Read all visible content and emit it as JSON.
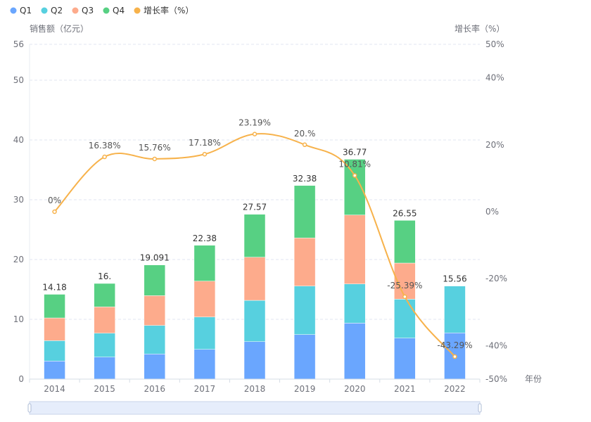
{
  "chart_data": {
    "type": "bar",
    "subtype": "stacked-bar-with-line",
    "categories": [
      "2014",
      "2015",
      "2016",
      "2017",
      "2018",
      "2019",
      "2020",
      "2021",
      "2022"
    ],
    "xlabel": "年份",
    "ylabel": "销售额（亿元）",
    "ylabel_right": "增长率（%）",
    "ylim": [
      0,
      56
    ],
    "ylim_right": [
      -50,
      50
    ],
    "y_ticks": [
      "0",
      "10",
      "20",
      "30",
      "40",
      "50",
      "56"
    ],
    "y_right_ticks": [
      "-50%",
      "-40%",
      "-20%",
      "0%",
      "20%",
      "40%",
      "50%"
    ],
    "grid": true,
    "legend_position": "top-left",
    "legend": [
      "Q1",
      "Q2",
      "Q3",
      "Q4",
      "增长率（%）"
    ],
    "colors": {
      "Q1": "#6aa6fe",
      "Q2": "#57d0df",
      "Q3": "#fdab8c",
      "Q4": "#57d083",
      "growth": "#f7b24b"
    },
    "series": [
      {
        "name": "Q1",
        "type": "bar",
        "values": [
          3.02,
          3.68,
          4.2,
          4.98,
          6.27,
          7.45,
          9.37,
          6.86,
          7.73
        ]
      },
      {
        "name": "Q2",
        "type": "bar",
        "values": [
          3.41,
          4.0,
          4.78,
          5.41,
          6.9,
          8.12,
          6.55,
          6.51,
          7.83
        ]
      },
      {
        "name": "Q3",
        "type": "bar",
        "values": [
          3.8,
          4.4,
          4.98,
          6.0,
          7.22,
          8.04,
          11.53,
          6.04,
          0
        ]
      },
      {
        "name": "Q4",
        "type": "bar",
        "values": [
          3.95,
          3.92,
          5.13,
          5.99,
          7.18,
          8.77,
          9.32,
          7.14,
          0
        ]
      },
      {
        "name": "增长率（%）",
        "type": "line",
        "axis": "right",
        "values": [
          0,
          16.38,
          15.76,
          17.18,
          23.19,
          20.0,
          10.81,
          -25.39,
          -43.29
        ]
      }
    ],
    "totals": [
      14.18,
      16.0,
      19.091,
      22.38,
      27.57,
      32.38,
      36.77,
      26.55,
      15.56
    ],
    "total_labels": [
      "14.18",
      "16.",
      "19.091",
      "22.38",
      "27.57",
      "32.38",
      "36.77",
      "26.55",
      "15.56"
    ],
    "growth_labels": [
      "0%",
      "16.38%",
      "15.76%",
      "17.18%",
      "23.19%",
      "20.%",
      "10.81%",
      "-25.39%",
      "-43.29%"
    ],
    "data_zoom": {
      "start_percent": 0,
      "end_percent": 100
    }
  }
}
